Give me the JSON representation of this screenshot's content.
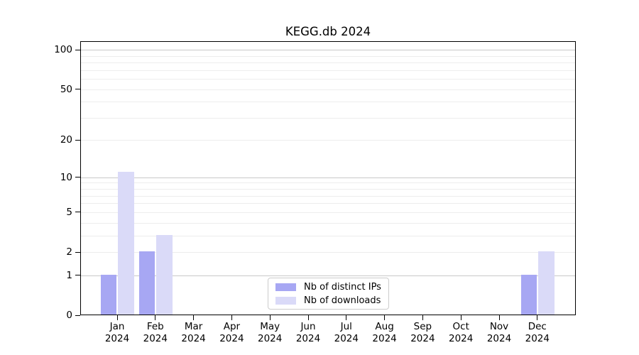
{
  "chart_data": {
    "type": "bar",
    "title": "KEGG.db 2024",
    "categories": [
      "Jan",
      "Feb",
      "Mar",
      "Apr",
      "May",
      "Jun",
      "Jul",
      "Aug",
      "Sep",
      "Oct",
      "Nov",
      "Dec"
    ],
    "x_year_label": "2024",
    "series": [
      {
        "name": "Nb of distinct IPs",
        "color": "#a7a7f3",
        "values": [
          1,
          2,
          0,
          0,
          0,
          0,
          0,
          0,
          0,
          0,
          0,
          1
        ]
      },
      {
        "name": "Nb of downloads",
        "color": "#dadaf8",
        "values": [
          11,
          3,
          0,
          0,
          0,
          0,
          0,
          0,
          0,
          0,
          0,
          2
        ]
      }
    ],
    "xlabel": "",
    "ylabel": "",
    "y_axis": {
      "scale": "log1p",
      "tick_values": [
        0,
        1,
        2,
        5,
        10,
        20,
        50,
        100
      ],
      "major_gridlines": [
        1,
        10,
        100
      ],
      "minor_gridlines": [
        2,
        3,
        4,
        5,
        6,
        7,
        8,
        9,
        20,
        30,
        40,
        50,
        60,
        70,
        80,
        90
      ],
      "ylim": [
        0,
        116
      ]
    },
    "grid": true,
    "legend_position": "lower-center"
  },
  "colors": {
    "major_gridline": "#c9c9c9",
    "minor_gridline": "#ededed",
    "axis": "#000000",
    "legend_border": "#cccccc",
    "background": "#ffffff"
  }
}
